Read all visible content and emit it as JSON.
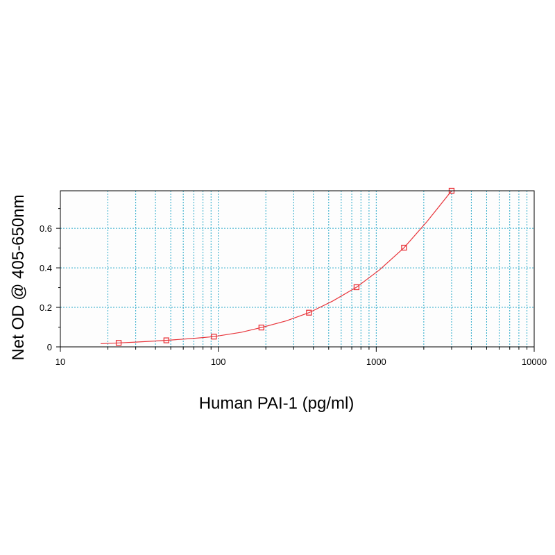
{
  "chart_data": {
    "type": "scatter",
    "xlabel": "Human PAI-1 (pg/ml)",
    "ylabel": "Net OD @ 405-650nm",
    "x_scale": "log",
    "xlim": [
      10,
      10000
    ],
    "ylim": [
      0,
      0.79
    ],
    "x_ticks": [
      10,
      100,
      1000,
      10000
    ],
    "x_tick_labels": [
      "10",
      "100",
      "1000",
      "10000"
    ],
    "y_ticks": [
      0,
      0.2,
      0.4,
      0.6
    ],
    "y_tick_labels": [
      "0",
      "0.2",
      "0.4",
      "0.6"
    ],
    "grid": true,
    "series": [
      {
        "x": [
          23.4,
          46.9,
          93.8,
          187.5,
          375,
          750,
          1500,
          3000
        ],
        "y": [
          0.02,
          0.033,
          0.052,
          0.098,
          0.173,
          0.302,
          0.502,
          0.79
        ]
      }
    ],
    "fit_curve": {
      "x": [
        18,
        23.4,
        30,
        46.9,
        70,
        93.8,
        140,
        187.5,
        270,
        375,
        530,
        750,
        1050,
        1500,
        2100,
        3000
      ],
      "y": [
        0.016,
        0.02,
        0.024,
        0.033,
        0.043,
        0.052,
        0.074,
        0.098,
        0.132,
        0.173,
        0.232,
        0.302,
        0.39,
        0.502,
        0.635,
        0.79
      ]
    },
    "colors": {
      "series": "#e8343a",
      "grid": "#29a9c9",
      "frame": "#000000",
      "plot_bg": "#fdfdfd"
    }
  }
}
